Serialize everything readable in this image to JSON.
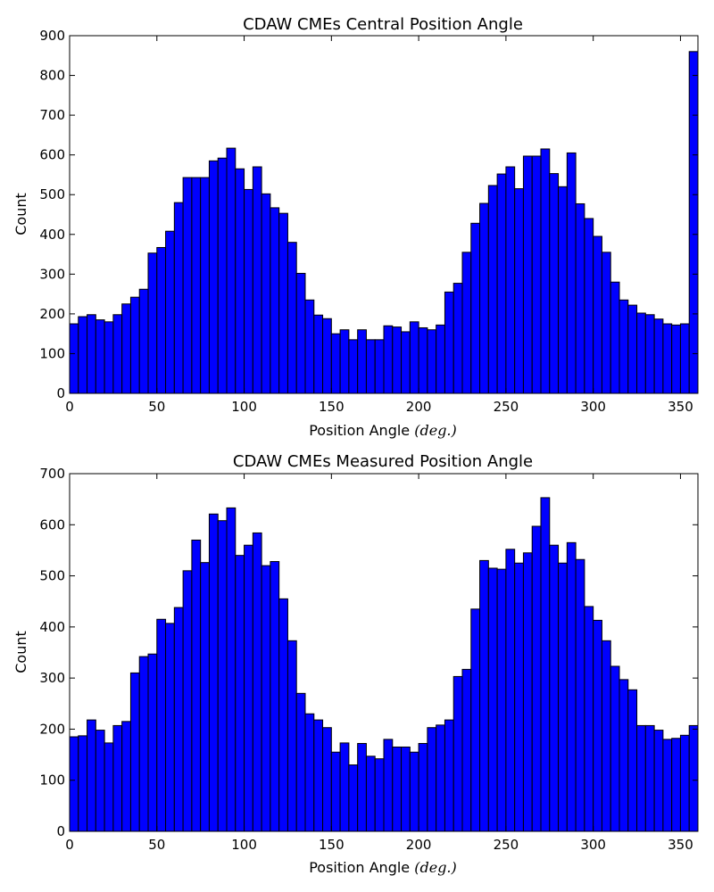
{
  "chart_data": [
    {
      "type": "bar",
      "title": "CDAW CMEs Central Position Angle",
      "xlabel": "Position Angle",
      "xlabel_unit": "(deg.)",
      "ylabel": "Count",
      "xlim": [
        0,
        360
      ],
      "ylim": [
        0,
        900
      ],
      "xticks": [
        0,
        50,
        100,
        150,
        200,
        250,
        300,
        350
      ],
      "yticks": [
        0,
        100,
        200,
        300,
        400,
        500,
        600,
        700,
        800,
        900
      ],
      "bin_width": 5,
      "bar_color": "#0000ff",
      "grid": false,
      "values": [
        175,
        193,
        198,
        185,
        180,
        198,
        225,
        242,
        262,
        353,
        367,
        408,
        480,
        543,
        543,
        543,
        585,
        592,
        617,
        565,
        513,
        570,
        502,
        467,
        453,
        380,
        302,
        235,
        197,
        188,
        150,
        160,
        135,
        160,
        135,
        135,
        170,
        167,
        155,
        180,
        165,
        160,
        172,
        255,
        277,
        355,
        428,
        478,
        523,
        552,
        570,
        515,
        597,
        597,
        615,
        553,
        520,
        605,
        477,
        440,
        395,
        355,
        280,
        235,
        222,
        202,
        198,
        187,
        175,
        172,
        175,
        860
      ]
    },
    {
      "type": "bar",
      "title": "CDAW CMEs Measured Position Angle",
      "xlabel": "Position Angle",
      "xlabel_unit": "(deg.)",
      "ylabel": "Count",
      "xlim": [
        0,
        360
      ],
      "ylim": [
        0,
        700
      ],
      "xticks": [
        0,
        50,
        100,
        150,
        200,
        250,
        300,
        350
      ],
      "yticks": [
        0,
        100,
        200,
        300,
        400,
        500,
        600,
        700
      ],
      "bin_width": 5,
      "bar_color": "#0000ff",
      "grid": false,
      "values": [
        185,
        187,
        218,
        198,
        173,
        207,
        215,
        310,
        342,
        347,
        415,
        407,
        438,
        510,
        570,
        526,
        621,
        608,
        633,
        540,
        560,
        584,
        520,
        528,
        455,
        373,
        270,
        230,
        218,
        203,
        155,
        173,
        130,
        172,
        147,
        142,
        180,
        165,
        165,
        155,
        172,
        203,
        208,
        218,
        303,
        317,
        435,
        530,
        515,
        513,
        552,
        525,
        545,
        597,
        653,
        560,
        525,
        565,
        532,
        440,
        413,
        373,
        323,
        297,
        277,
        207,
        207,
        198,
        180,
        182,
        188,
        207
      ]
    }
  ]
}
